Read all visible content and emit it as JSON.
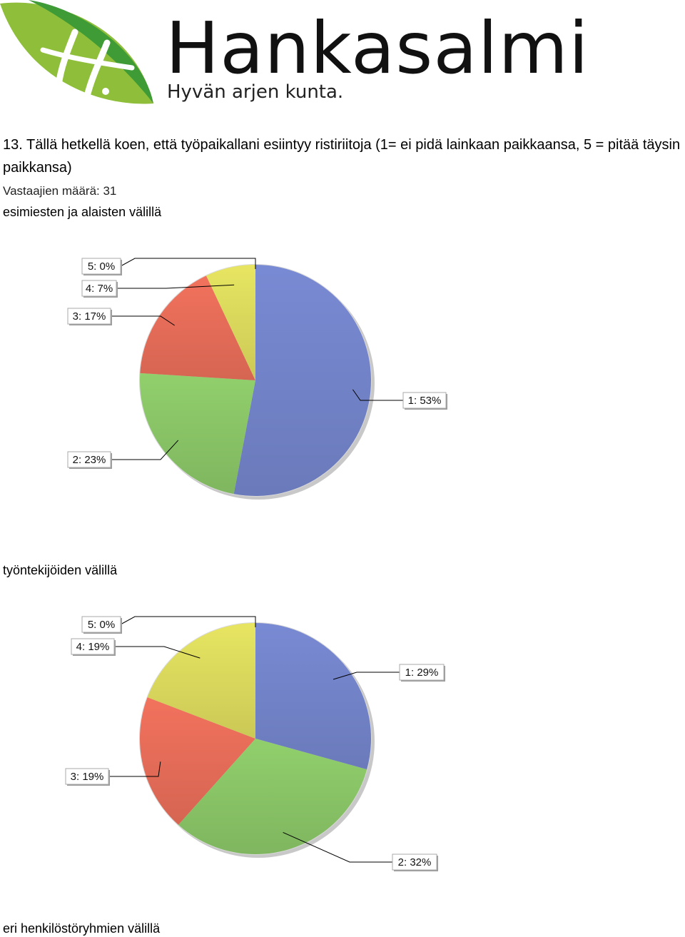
{
  "logo": {
    "name": "Hankasalmi",
    "tagline": "Hyvän arjen kunta."
  },
  "question": "13. Tällä hetkellä koen, että työpaikallani esiintyy ristiriitoja (1= ei pidä lainkaan paikkaansa, 5 = pitää täysin paikkansa)",
  "respondents": "Vastaajien määrä: 31",
  "colors": {
    "1": "#7080c4",
    "2": "#86c064",
    "3": "#e06a56",
    "4": "#d6d45a",
    "5": "#b070c0"
  },
  "chart_data": [
    {
      "type": "pie",
      "title": "esimiesten ja alaisten välillä",
      "slices": [
        {
          "label": "1: 53%",
          "key": "1",
          "value": 53
        },
        {
          "label": "2: 23%",
          "key": "2",
          "value": 23
        },
        {
          "label": "3: 17%",
          "key": "3",
          "value": 17
        },
        {
          "label": "4: 7%",
          "key": "4",
          "value": 7
        },
        {
          "label": "5: 0%",
          "key": "5",
          "value": 0
        }
      ]
    },
    {
      "type": "pie",
      "title": "työntekijöiden välillä",
      "slices": [
        {
          "label": "1: 29%",
          "key": "1",
          "value": 29
        },
        {
          "label": "2: 32%",
          "key": "2",
          "value": 32
        },
        {
          "label": "3: 19%",
          "key": "3",
          "value": 19
        },
        {
          "label": "4: 19%",
          "key": "4",
          "value": 19
        },
        {
          "label": "5: 0%",
          "key": "5",
          "value": 0
        }
      ]
    },
    {
      "type": "pie",
      "title": "eri henkilöstöryhmien välillä",
      "slices": []
    }
  ]
}
